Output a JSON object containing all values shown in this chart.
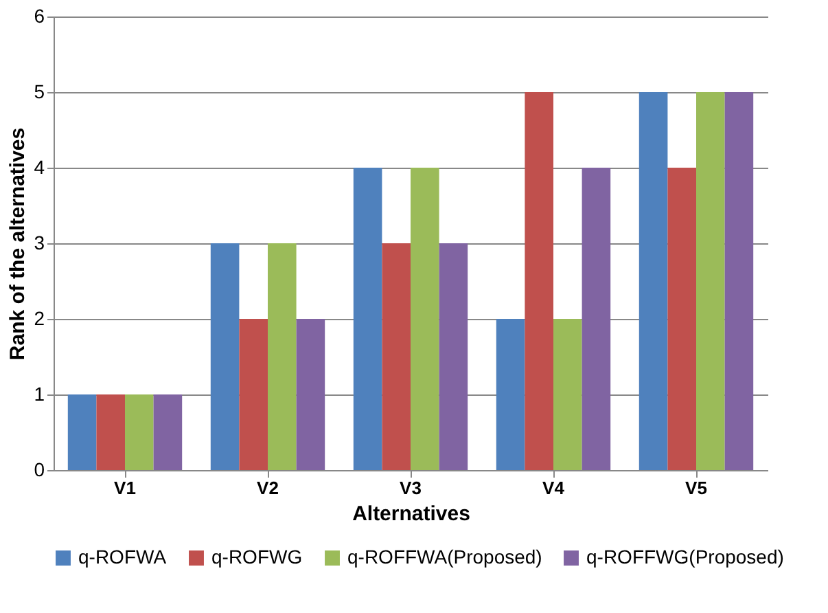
{
  "chart_data": {
    "type": "bar",
    "xlabel": "Alternatives",
    "ylabel": "Rank of the alternatives",
    "categories": [
      "V1",
      "V2",
      "V3",
      "V4",
      "V5"
    ],
    "series": [
      {
        "name": "q-ROFWA",
        "color": "#4f81bd",
        "values": [
          1,
          3,
          4,
          2,
          5
        ]
      },
      {
        "name": "q-ROFWG",
        "color": "#c0504d",
        "values": [
          1,
          2,
          3,
          5,
          4
        ]
      },
      {
        "name": "q-ROFFWA(Proposed)",
        "color": "#9bbb59",
        "values": [
          1,
          3,
          4,
          2,
          5
        ]
      },
      {
        "name": "q-ROFFWG(Proposed)",
        "color": "#8064a2",
        "values": [
          1,
          2,
          3,
          4,
          5
        ]
      }
    ],
    "ylim": [
      0,
      6
    ],
    "yticks": [
      0,
      1,
      2,
      3,
      4,
      5,
      6
    ],
    "grid": "y",
    "legend": "bottom"
  }
}
